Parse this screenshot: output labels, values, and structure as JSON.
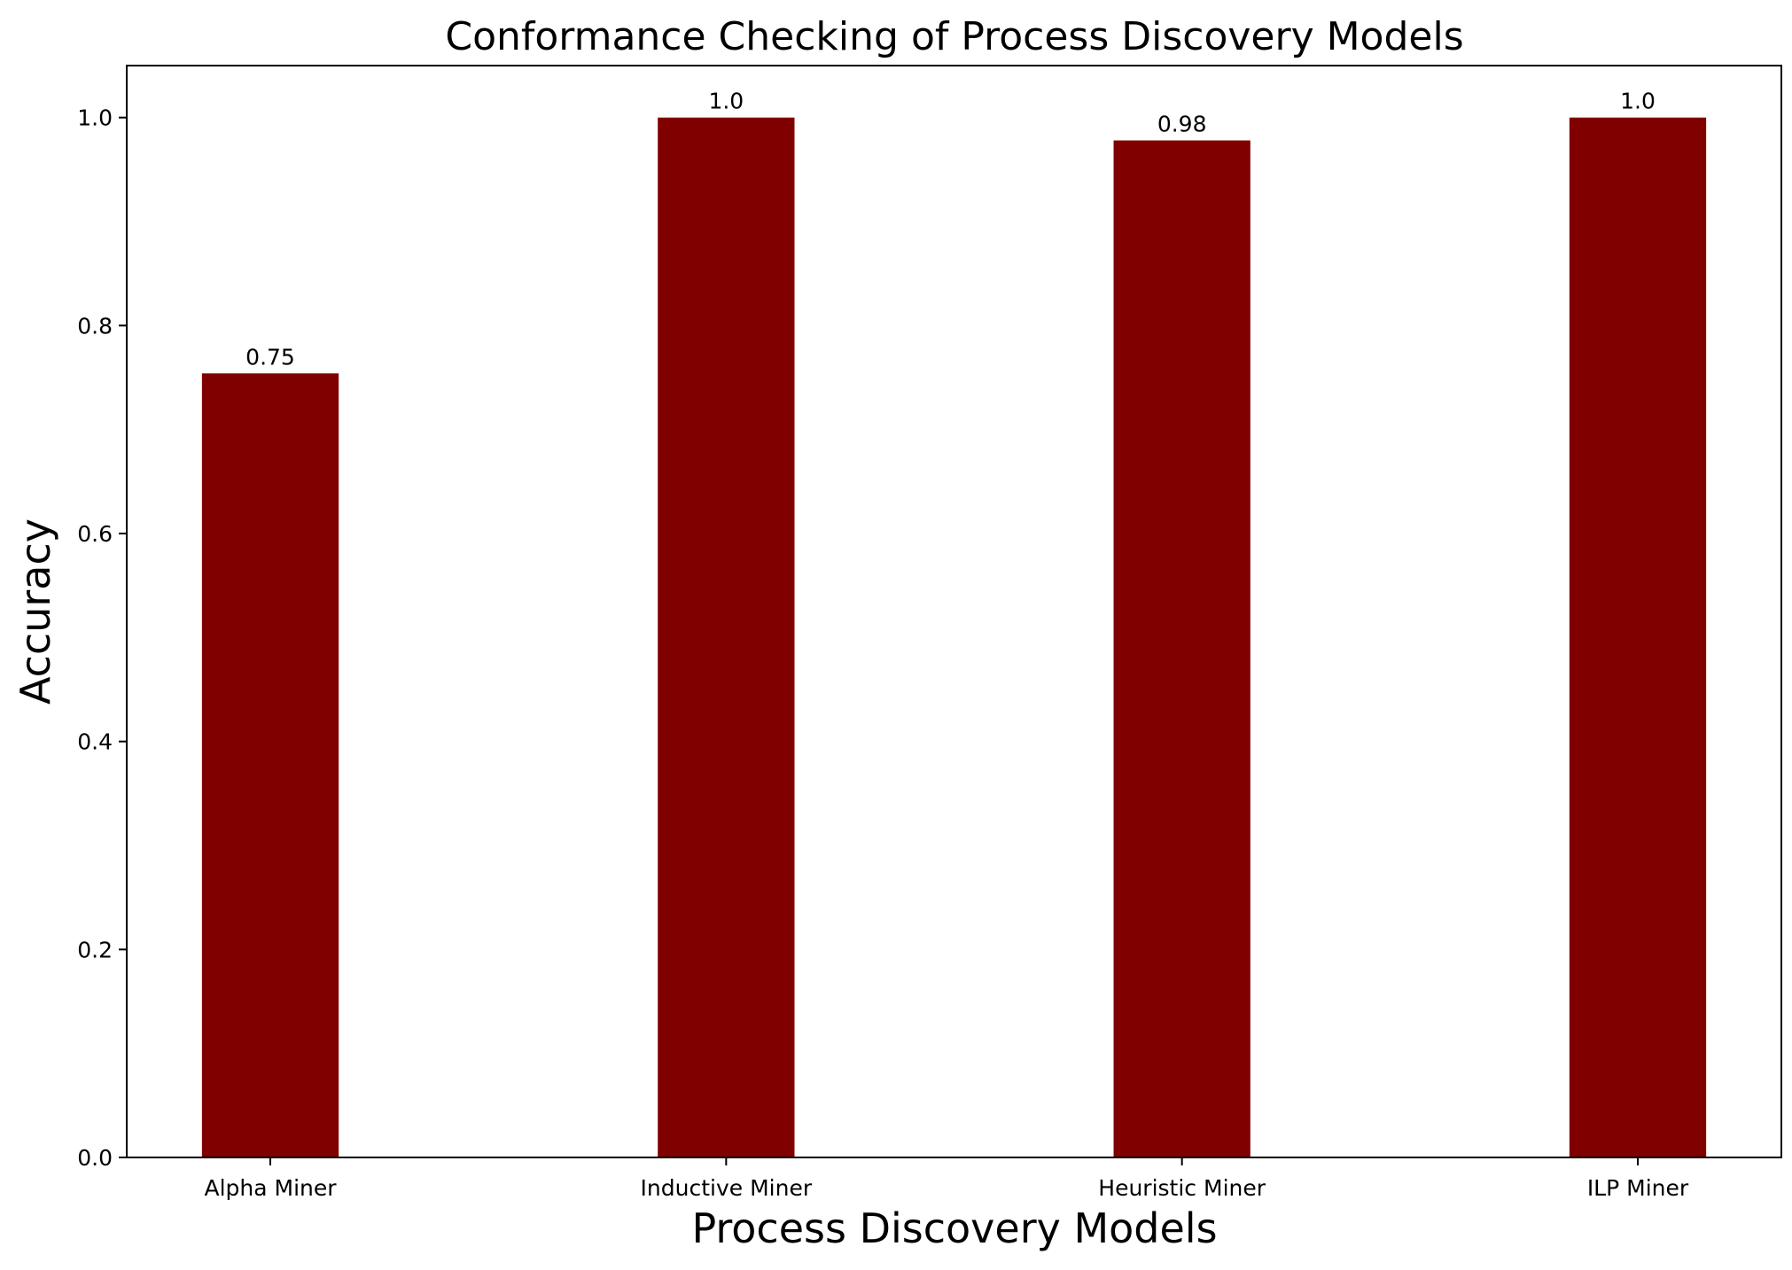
{
  "chart_data": {
    "type": "bar",
    "title": "Conformance Checking of Process Discovery Models",
    "xlabel": "Process Discovery Models",
    "ylabel": "Accuracy",
    "categories": [
      "Alpha Miner",
      "Inductive Miner",
      "Heuristic Miner",
      "ILP Miner"
    ],
    "values": [
      0.754,
      1.0,
      0.978,
      1.0
    ],
    "data_labels": [
      "0.75",
      "1.0",
      "0.98",
      "1.0"
    ],
    "ylim": [
      0,
      1.05
    ],
    "yticks": [
      0.0,
      0.2,
      0.4,
      0.6,
      0.8,
      1.0
    ],
    "ytick_labels": [
      "0.0",
      "0.2",
      "0.4",
      "0.6",
      "0.8",
      "1.0"
    ],
    "bar_color": "#800000",
    "grid": false,
    "legend": "none"
  }
}
